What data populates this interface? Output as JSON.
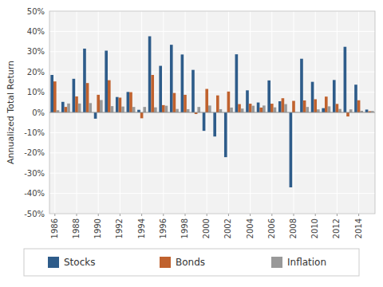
{
  "chart_data": {
    "type": "bar",
    "y_label": "Annualized Total Return",
    "categories": [
      "1986",
      null,
      "1988",
      null,
      "1990",
      null,
      "1992",
      null,
      "1994",
      null,
      "1996",
      null,
      "1998",
      null,
      "2000",
      null,
      "2002",
      null,
      "2004",
      null,
      "2006",
      null,
      "2008",
      null,
      "2010",
      null,
      "2012",
      null,
      "2014",
      null
    ],
    "series": [
      {
        "name": "Stocks",
        "color": "#2e5c8a",
        "values": [
          0.185,
          0.052,
          0.166,
          0.315,
          -0.031,
          0.305,
          0.076,
          0.101,
          0.013,
          0.376,
          0.23,
          0.334,
          0.286,
          0.21,
          -0.091,
          -0.119,
          -0.221,
          0.287,
          0.109,
          0.049,
          0.158,
          0.055,
          -0.37,
          0.265,
          0.151,
          0.021,
          0.16,
          0.324,
          0.137,
          0.014
        ]
      },
      {
        "name": "Bonds",
        "color": "#c0622e",
        "values": [
          0.153,
          0.027,
          0.079,
          0.145,
          0.087,
          0.159,
          0.073,
          0.1,
          -0.029,
          0.185,
          0.036,
          0.096,
          0.087,
          -0.008,
          0.116,
          0.084,
          0.103,
          0.041,
          0.043,
          0.024,
          0.043,
          0.07,
          0.057,
          0.059,
          0.065,
          0.078,
          0.042,
          -0.02,
          0.06,
          0.006
        ]
      },
      {
        "name": "Inflation",
        "color": "#999999",
        "values": [
          0.011,
          0.044,
          0.044,
          0.046,
          0.061,
          0.031,
          0.029,
          0.027,
          0.027,
          0.025,
          0.033,
          0.017,
          0.016,
          0.027,
          0.034,
          0.016,
          0.024,
          0.019,
          0.033,
          0.034,
          0.025,
          0.041,
          0.001,
          0.027,
          0.015,
          0.03,
          0.017,
          0.015,
          0.008,
          0.007
        ]
      }
    ],
    "ylim": [
      -0.5,
      0.5
    ],
    "yticks": [
      {
        "value": -0.5,
        "label": "-50%"
      },
      {
        "value": -0.4,
        "label": "-40%"
      },
      {
        "value": -0.3,
        "label": "-30%"
      },
      {
        "value": -0.2,
        "label": "-20%"
      },
      {
        "value": -0.1,
        "label": "-10%"
      },
      {
        "value": 0,
        "label": "0%"
      },
      {
        "value": 0.1,
        "label": "10%"
      },
      {
        "value": 0.2,
        "label": "20%"
      },
      {
        "value": 0.3,
        "label": "30%"
      },
      {
        "value": 0.4,
        "label": "40%"
      },
      {
        "value": 0.5,
        "label": "50%"
      }
    ],
    "grid": true,
    "legend": "bottom"
  }
}
